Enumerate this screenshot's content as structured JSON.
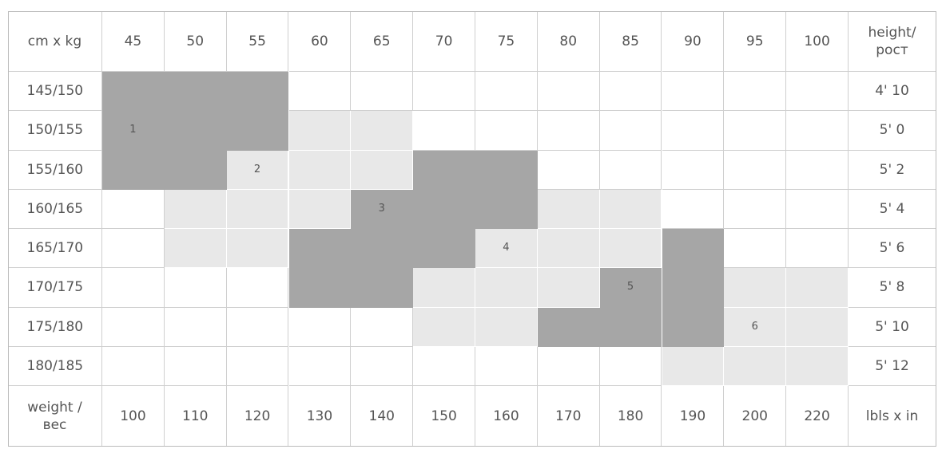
{
  "table": {
    "header": [
      "cm x kg",
      45,
      50,
      55,
      60,
      65,
      70,
      75,
      80,
      85,
      90,
      95,
      100,
      "height/ рост"
    ],
    "rows": [
      [
        "145/150",
        "4' 10"
      ],
      [
        "150/155",
        "5' 0"
      ],
      [
        "155/160",
        "5' 2"
      ],
      [
        "160/165",
        "5' 4"
      ],
      [
        "165/170",
        "5' 6"
      ],
      [
        "170/175",
        "5' 8"
      ],
      [
        "175/180",
        "5' 10"
      ],
      [
        "180/185",
        "5' 12"
      ]
    ],
    "size_labels": [
      1,
      2,
      3,
      4,
      5,
      6
    ],
    "footer": [
      "weight / вес",
      100,
      110,
      120,
      130,
      140,
      150,
      160,
      170,
      180,
      190,
      200,
      220,
      "lbls x in"
    ]
  }
}
